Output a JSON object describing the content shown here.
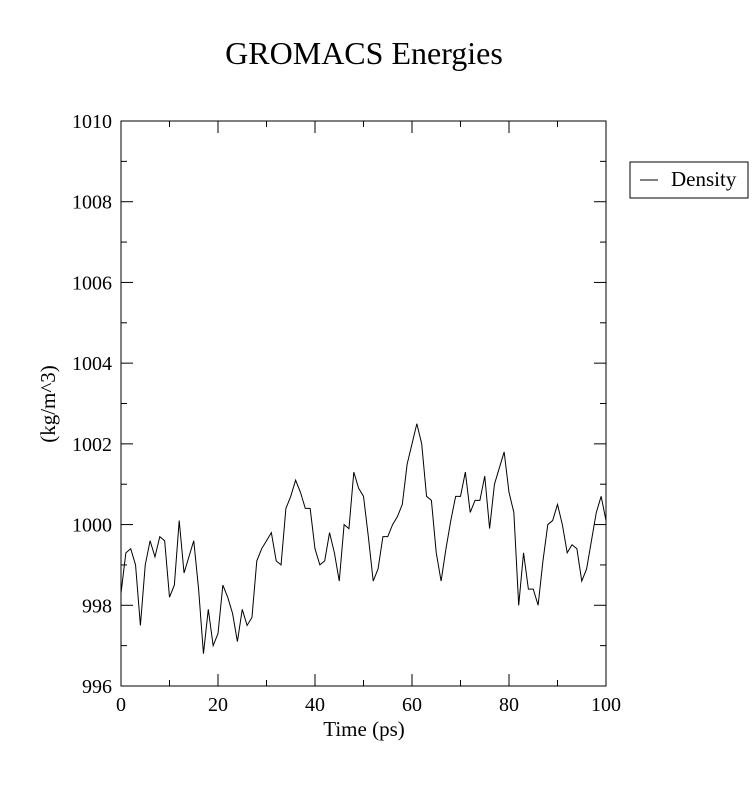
{
  "chart_data": {
    "type": "line",
    "title": "GROMACS Energies",
    "xlabel": "Time (ps)",
    "ylabel": "(kg/m^3)",
    "xlim": [
      0,
      100
    ],
    "ylim": [
      996,
      1010
    ],
    "x_ticks": [
      0,
      20,
      40,
      60,
      80,
      100
    ],
    "y_ticks": [
      996,
      998,
      1000,
      1002,
      1004,
      1006,
      1008,
      1010
    ],
    "x_minor_step": 10,
    "y_minor_step": 1,
    "grid": false,
    "legend": {
      "position": "right",
      "entries": [
        "Density"
      ]
    },
    "series": [
      {
        "name": "Density",
        "color": "#000000",
        "x": [
          0,
          1,
          2,
          3,
          4,
          5,
          6,
          7,
          8,
          9,
          10,
          11,
          12,
          13,
          14,
          15,
          16,
          17,
          18,
          19,
          20,
          21,
          22,
          23,
          24,
          25,
          26,
          27,
          28,
          29,
          30,
          31,
          32,
          33,
          34,
          35,
          36,
          37,
          38,
          39,
          40,
          41,
          42,
          43,
          44,
          45,
          46,
          47,
          48,
          49,
          50,
          51,
          52,
          53,
          54,
          55,
          56,
          57,
          58,
          59,
          60,
          61,
          62,
          63,
          64,
          65,
          66,
          67,
          68,
          69,
          70,
          71,
          72,
          73,
          74,
          75,
          76,
          77,
          78,
          79,
          80,
          81,
          82,
          83,
          84,
          85,
          86,
          87,
          88,
          89,
          90,
          91,
          92,
          93,
          94,
          95,
          96,
          97,
          98,
          99,
          100
        ],
        "values": [
          998.3,
          999.3,
          999.4,
          999.0,
          997.5,
          999.0,
          999.6,
          999.2,
          999.7,
          999.6,
          998.2,
          998.5,
          1000.1,
          998.8,
          999.2,
          999.6,
          998.4,
          996.8,
          997.9,
          997.0,
          997.3,
          998.5,
          998.2,
          997.8,
          997.1,
          997.9,
          997.5,
          997.7,
          999.1,
          999.4,
          999.6,
          999.8,
          999.1,
          999.0,
          1000.4,
          1000.7,
          1001.1,
          1000.8,
          1000.4,
          1000.4,
          999.4,
          999.0,
          999.1,
          999.8,
          999.3,
          998.6,
          1000.0,
          999.9,
          1001.3,
          1000.9,
          1000.7,
          999.7,
          998.6,
          998.9,
          999.7,
          999.7,
          1000.0,
          1000.2,
          1000.5,
          1001.5,
          1002.0,
          1002.5,
          1002.0,
          1000.7,
          1000.6,
          999.3,
          998.6,
          999.4,
          1000.1,
          1000.7,
          1000.7,
          1001.3,
          1000.3,
          1000.6,
          1000.6,
          1001.2,
          999.9,
          1001.0,
          1001.4,
          1001.8,
          1000.8,
          1000.3,
          998.0,
          999.3,
          998.4,
          998.4,
          998.0,
          999.1,
          1000.0,
          1000.1,
          1000.5,
          1000.0,
          999.3,
          999.5,
          999.4,
          998.6,
          998.9,
          999.6,
          1000.3,
          1000.7,
          1000.1
        ]
      }
    ]
  }
}
